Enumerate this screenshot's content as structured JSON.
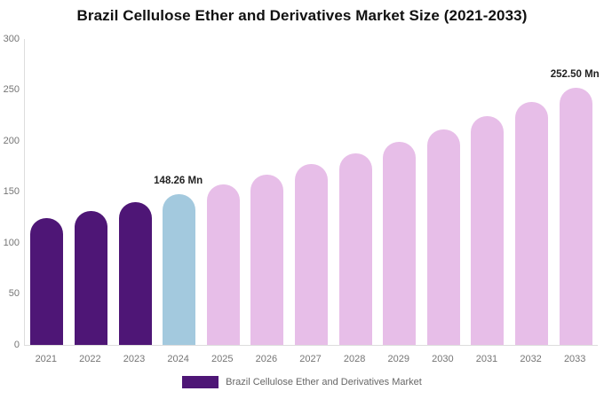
{
  "chart_data": {
    "type": "bar",
    "title": "Brazil Cellulose Ether and Derivatives Market Size (2021-2033)",
    "categories": [
      "2021",
      "2022",
      "2023",
      "2024",
      "2025",
      "2026",
      "2027",
      "2028",
      "2029",
      "2030",
      "2031",
      "2032",
      "2033"
    ],
    "values": [
      124.1,
      131.7,
      139.7,
      148.26,
      157.3,
      166.9,
      177.1,
      187.9,
      199.4,
      211.6,
      224.5,
      238.2,
      252.5
    ],
    "bar_roles": [
      "historical",
      "historical",
      "historical",
      "base_year",
      "forecast",
      "forecast",
      "forecast",
      "forecast",
      "forecast",
      "forecast",
      "forecast",
      "forecast",
      "forecast"
    ],
    "colors": {
      "historical": "#4e1676",
      "base_year": "#a3c9de",
      "forecast": "#e7bee8"
    },
    "xlabel": "",
    "ylabel": "",
    "ylim": [
      0,
      300
    ],
    "yticks": [
      0,
      50,
      100,
      150,
      200,
      250,
      300
    ],
    "grid": false,
    "legend_position": "bottom",
    "annotations": [
      {
        "category": "2024",
        "text": "148.26 Mn"
      },
      {
        "category": "2033",
        "text": "252.50 Mn"
      }
    ],
    "series": [
      {
        "name": "Brazil Cellulose Ether and Derivatives Market"
      }
    ]
  }
}
